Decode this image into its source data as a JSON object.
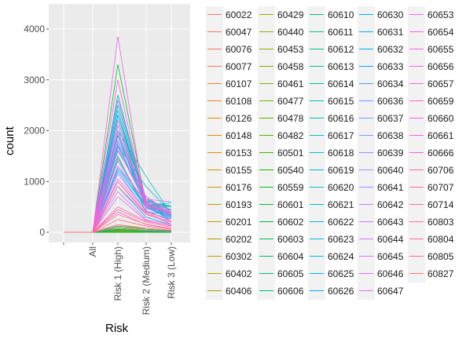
{
  "chart_data": {
    "type": "line",
    "xlabel": "Risk",
    "ylabel": "count",
    "categories": [
      "",
      "All",
      "Risk 1 (High)",
      "Risk 2 (Medium)",
      "Risk 3 (Low)"
    ],
    "ylim": [
      -200,
      4500
    ],
    "yticks": [
      0,
      1000,
      2000,
      3000,
      4000
    ],
    "grid": true,
    "background": "#ebebeb",
    "legend_position": "right",
    "legend_columns": 5,
    "legend": [
      "60022",
      "60047",
      "60076",
      "60077",
      "60107",
      "60108",
      "60126",
      "60148",
      "60153",
      "60155",
      "60176",
      "60193",
      "60201",
      "60202",
      "60302",
      "60402",
      "60406",
      "60429",
      "60440",
      "60453",
      "60458",
      "60461",
      "60477",
      "60478",
      "60482",
      "60501",
      "60540",
      "60559",
      "60601",
      "60602",
      "60603",
      "60604",
      "60605",
      "60606",
      "60610",
      "60611",
      "60612",
      "60613",
      "60614",
      "60615",
      "60616",
      "60617",
      "60618",
      "60619",
      "60620",
      "60621",
      "60622",
      "60623",
      "60624",
      "60625",
      "60626",
      "60630",
      "60631",
      "60632",
      "60633",
      "60634",
      "60636",
      "60637",
      "60638",
      "60639",
      "60640",
      "60641",
      "60642",
      "60643",
      "60644",
      "60645",
      "60646",
      "60647",
      "60653",
      "60654",
      "60655",
      "60656",
      "60657",
      "60659",
      "60660",
      "60661",
      "60666",
      "60706",
      "60707",
      "60714",
      "60803",
      "60804",
      "60805",
      "60827"
    ],
    "series_values": [
      [
        0,
        0,
        1,
        1,
        0
      ],
      [
        0,
        0,
        2,
        1,
        0
      ],
      [
        0,
        0,
        35,
        20,
        12
      ],
      [
        0,
        0,
        10,
        6,
        3
      ],
      [
        0,
        0,
        1,
        1,
        0
      ],
      [
        0,
        0,
        20,
        10,
        5
      ],
      [
        0,
        0,
        1,
        1,
        0
      ],
      [
        0,
        0,
        15,
        9,
        4
      ],
      [
        0,
        0,
        3,
        2,
        1
      ],
      [
        0,
        0,
        2,
        1,
        1
      ],
      [
        0,
        0,
        8,
        5,
        2
      ],
      [
        0,
        0,
        1,
        0,
        0
      ],
      [
        0,
        0,
        2,
        1,
        0
      ],
      [
        0,
        0,
        1,
        1,
        0
      ],
      [
        0,
        0,
        150,
        60,
        30
      ],
      [
        0,
        0,
        12,
        7,
        4
      ],
      [
        0,
        0,
        3,
        1,
        1
      ],
      [
        0,
        0,
        2,
        1,
        1
      ],
      [
        0,
        0,
        5,
        3,
        2
      ],
      [
        0,
        0,
        30,
        15,
        8
      ],
      [
        0,
        0,
        60,
        30,
        15
      ],
      [
        0,
        0,
        1,
        1,
        0
      ],
      [
        0,
        0,
        80,
        40,
        20
      ],
      [
        0,
        0,
        1,
        0,
        0
      ],
      [
        0,
        0,
        3,
        2,
        1
      ],
      [
        0,
        0,
        2,
        1,
        0
      ],
      [
        0,
        0,
        4,
        2,
        1
      ],
      [
        0,
        0,
        1,
        1,
        0
      ],
      [
        0,
        0,
        3300,
        560,
        300
      ],
      [
        0,
        0,
        120,
        60,
        30
      ],
      [
        0,
        0,
        40,
        25,
        10
      ],
      [
        0,
        0,
        60,
        30,
        15
      ],
      [
        0,
        0,
        50,
        20,
        10
      ],
      [
        0,
        0,
        1500,
        400,
        350
      ],
      [
        0,
        0,
        1900,
        550,
        400
      ],
      [
        0,
        0,
        2700,
        600,
        520
      ],
      [
        0,
        0,
        2200,
        500,
        380
      ],
      [
        0,
        0,
        2600,
        580,
        450
      ],
      [
        0,
        0,
        2500,
        550,
        500
      ],
      [
        0,
        0,
        1600,
        700,
        300
      ],
      [
        0,
        0,
        1450,
        500,
        250
      ],
      [
        0,
        0,
        2000,
        1100,
        350
      ],
      [
        0,
        0,
        2300,
        650,
        430
      ],
      [
        0,
        0,
        1700,
        900,
        380
      ],
      [
        0,
        0,
        2100,
        500,
        350
      ],
      [
        0,
        0,
        1800,
        650,
        320
      ],
      [
        0,
        0,
        2700,
        600,
        500
      ],
      [
        0,
        0,
        1300,
        500,
        300
      ],
      [
        0,
        0,
        1900,
        480,
        330
      ],
      [
        0,
        0,
        2400,
        520,
        580
      ],
      [
        0,
        0,
        1700,
        550,
        300
      ],
      [
        0,
        0,
        1900,
        470,
        330
      ],
      [
        0,
        0,
        900,
        300,
        150
      ],
      [
        0,
        0,
        1250,
        480,
        280
      ],
      [
        0,
        0,
        2300,
        560,
        200
      ],
      [
        0,
        0,
        1200,
        400,
        260
      ],
      [
        0,
        0,
        1600,
        700,
        330
      ],
      [
        0,
        0,
        1750,
        520,
        360
      ],
      [
        0,
        0,
        1400,
        500,
        300
      ],
      [
        0,
        0,
        2100,
        540,
        380
      ],
      [
        0,
        0,
        2000,
        560,
        430
      ],
      [
        0,
        0,
        1450,
        480,
        310
      ],
      [
        0,
        0,
        1000,
        350,
        200
      ],
      [
        0,
        0,
        1150,
        420,
        150
      ],
      [
        0,
        0,
        1800,
        700,
        380
      ],
      [
        0,
        0,
        800,
        250,
        150
      ],
      [
        0,
        0,
        700,
        230,
        120
      ],
      [
        0,
        0,
        2600,
        650,
        600
      ],
      [
        0,
        0,
        1050,
        430,
        210
      ],
      [
        0,
        0,
        3850,
        400,
        250
      ],
      [
        0,
        0,
        1300,
        600,
        320
      ],
      [
        0,
        0,
        400,
        150,
        70
      ],
      [
        0,
        0,
        3000,
        500,
        400
      ],
      [
        0,
        0,
        1950,
        580,
        380
      ],
      [
        0,
        0,
        2200,
        620,
        450
      ],
      [
        0,
        0,
        1650,
        550,
        350
      ],
      [
        0,
        0,
        100,
        40,
        20
      ],
      [
        0,
        0,
        500,
        220,
        130
      ],
      [
        0,
        0,
        900,
        350,
        200
      ],
      [
        0,
        0,
        450,
        200,
        100
      ],
      [
        0,
        0,
        1000,
        380,
        160
      ],
      [
        0,
        0,
        250,
        120,
        60
      ],
      [
        0,
        0,
        350,
        160,
        70
      ],
      [
        0,
        0,
        150,
        80,
        40
      ]
    ]
  }
}
